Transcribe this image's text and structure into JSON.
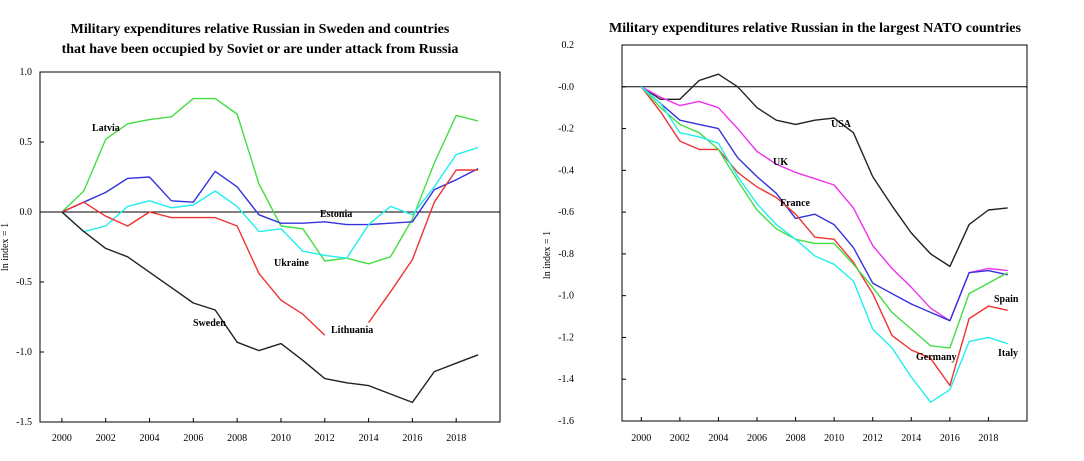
{
  "chart_data": [
    {
      "type": "line",
      "title_line1": "Military expenditures relative Russian in Sweden and countries",
      "title_line2": "that have been occupied by Soviet or are under attack from Russia",
      "xlabel": "",
      "ylabel": "ln index = 1",
      "xlim": [
        1999,
        2020
      ],
      "ylim": [
        -1.5,
        1.0
      ],
      "xticks": [
        2000,
        2002,
        2004,
        2006,
        2008,
        2010,
        2012,
        2014,
        2016,
        2018
      ],
      "yticks": [
        "1.0",
        "0.5",
        "0.0",
        "-0.5",
        "-1.0",
        "-1.5"
      ],
      "grid": false,
      "zero_line": true,
      "x": [
        2000,
        2001,
        2002,
        2003,
        2004,
        2005,
        2006,
        2007,
        2008,
        2009,
        2010,
        2011,
        2012,
        2013,
        2014,
        2015,
        2016,
        2017,
        2018,
        2019
      ],
      "series": [
        {
          "name": "Latvia",
          "color": "#44dd44",
          "values": [
            0.0,
            0.15,
            0.52,
            0.63,
            0.66,
            0.68,
            0.81,
            0.81,
            0.7,
            0.2,
            -0.1,
            -0.12,
            -0.35,
            -0.33,
            -0.37,
            -0.32,
            -0.05,
            0.35,
            0.69,
            0.65
          ]
        },
        {
          "name": "Estonia",
          "color": "#3333dd",
          "values": [
            0.0,
            0.07,
            0.14,
            0.24,
            0.25,
            0.08,
            0.07,
            0.29,
            0.18,
            -0.02,
            -0.08,
            -0.08,
            -0.07,
            -0.09,
            -0.09,
            -0.08,
            -0.07,
            0.16,
            0.23,
            0.31
          ]
        },
        {
          "name": "Ukraine",
          "color": "#22eeee",
          "values": [
            0.0,
            -0.14,
            -0.1,
            0.04,
            0.08,
            0.03,
            0.05,
            0.15,
            0.04,
            -0.14,
            -0.12,
            -0.28,
            -0.31,
            -0.33,
            -0.09,
            0.04,
            -0.02,
            0.18,
            0.41,
            0.46
          ]
        },
        {
          "name": "Lithuania",
          "color": "#ee3333",
          "values": [
            0.0,
            0.07,
            -0.03,
            -0.1,
            0.0,
            -0.04,
            -0.04,
            -0.04,
            -0.1,
            -0.44,
            -0.63,
            -0.73,
            -0.88,
            null,
            -0.79,
            -0.57,
            -0.34,
            0.07,
            0.3,
            0.3
          ]
        },
        {
          "name": "Sweden",
          "color": "#222222",
          "values": [
            0.0,
            -0.14,
            -0.26,
            -0.32,
            -0.43,
            -0.54,
            -0.65,
            -0.7,
            -0.93,
            -0.99,
            -0.94,
            -1.06,
            -1.19,
            -1.22,
            -1.24,
            -1.3,
            -1.36,
            -1.14,
            -1.08,
            -1.02
          ]
        }
      ],
      "labels": [
        "Latvia",
        "Estonia",
        "Ukraine",
        "Lithuania",
        "Sweden"
      ]
    },
    {
      "type": "line",
      "title_line1": "Military expenditures relative Russian in the largest NATO countries",
      "xlabel": "",
      "ylabel": "ln index = 1",
      "xlim": [
        1999,
        2020
      ],
      "ylim": [
        -1.6,
        0.2
      ],
      "xticks": [
        2000,
        2002,
        2004,
        2006,
        2008,
        2010,
        2012,
        2014,
        2016,
        2018
      ],
      "yticks": [
        "0.2",
        "-0.0",
        "-0.2",
        "-0.4",
        "-0.6",
        "-0.8",
        "-1.0",
        "-1.2",
        "-1.4",
        "-1.6"
      ],
      "grid": false,
      "zero_line": true,
      "x": [
        2000,
        2001,
        2002,
        2003,
        2004,
        2005,
        2006,
        2007,
        2008,
        2009,
        2010,
        2011,
        2012,
        2013,
        2014,
        2015,
        2016,
        2017,
        2018,
        2019
      ],
      "series": [
        {
          "name": "USA",
          "color": "#222222",
          "values": [
            0.0,
            -0.06,
            -0.06,
            0.03,
            0.06,
            0.0,
            -0.1,
            -0.16,
            -0.18,
            -0.16,
            -0.15,
            -0.22,
            -0.43,
            -0.57,
            -0.7,
            -0.8,
            -0.86,
            -0.66,
            -0.59,
            -0.58
          ]
        },
        {
          "name": "UK",
          "color": "#ee33ee",
          "values": [
            0.0,
            -0.05,
            -0.09,
            -0.07,
            -0.1,
            -0.2,
            -0.31,
            -0.37,
            -0.41,
            -0.44,
            -0.47,
            -0.58,
            -0.76,
            -0.87,
            -0.96,
            -1.06,
            -1.12,
            -0.89,
            -0.87,
            -0.88
          ]
        },
        {
          "name": "France",
          "color": "#3333dd",
          "values": [
            0.0,
            -0.08,
            -0.16,
            -0.18,
            -0.2,
            -0.34,
            -0.43,
            -0.51,
            -0.63,
            -0.61,
            -0.66,
            -0.77,
            -0.94,
            -0.99,
            -1.04,
            -1.08,
            -1.12,
            -0.89,
            -0.88,
            -0.9
          ]
        },
        {
          "name": "Germany",
          "color": "#ee3333",
          "values": [
            0.0,
            -0.12,
            -0.26,
            -0.3,
            -0.3,
            -0.41,
            -0.48,
            -0.53,
            -0.61,
            -0.72,
            -0.73,
            -0.84,
            -0.99,
            -1.19,
            -1.26,
            -1.3,
            -1.43,
            -1.11,
            -1.05,
            -1.07
          ]
        },
        {
          "name": "Spain",
          "color": "#44dd44",
          "values": [
            0.0,
            -0.1,
            -0.18,
            -0.22,
            -0.3,
            -0.45,
            -0.59,
            -0.68,
            -0.73,
            -0.75,
            -0.75,
            -0.85,
            -0.96,
            -1.08,
            -1.16,
            -1.24,
            -1.25,
            -0.99,
            -0.94,
            -0.89
          ]
        },
        {
          "name": "Italy",
          "color": "#22eeee",
          "values": [
            0.0,
            -0.08,
            -0.22,
            -0.24,
            -0.27,
            -0.43,
            -0.56,
            -0.66,
            -0.73,
            -0.81,
            -0.85,
            -0.93,
            -1.16,
            -1.25,
            -1.39,
            -1.51,
            -1.45,
            -1.22,
            -1.2,
            -1.23
          ]
        }
      ],
      "labels": [
        "USA",
        "UK",
        "France",
        "Germany",
        "Spain",
        "Italy"
      ]
    }
  ]
}
